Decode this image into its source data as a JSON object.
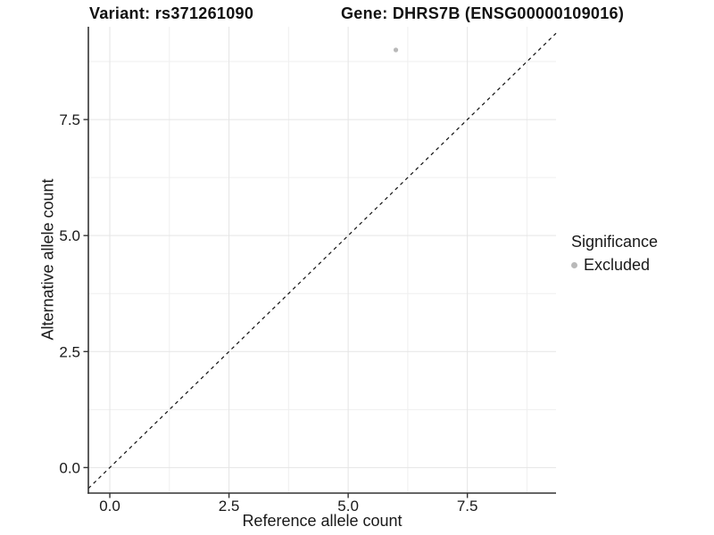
{
  "header": {
    "variant_title": "Variant: rs371261090",
    "gene_title": "Gene: DHRS7B (ENSG00000109016)"
  },
  "chart_data": {
    "type": "scatter",
    "xlabel": "Reference allele count",
    "ylabel": "Alternative allele count",
    "xlim": [
      -0.45,
      9.36
    ],
    "ylim": [
      -0.55,
      9.5
    ],
    "x_ticks": {
      "values": [
        0,
        2.5,
        5,
        7.5
      ],
      "labels": [
        "0.0",
        "2.5",
        "5.0",
        "7.5"
      ]
    },
    "y_ticks": {
      "values": [
        0,
        2.5,
        5,
        7.5
      ],
      "labels": [
        "0.0",
        "2.5",
        "5.0",
        "7.5"
      ]
    },
    "x_minor_breaks": [
      1.25,
      3.75,
      6.25,
      8.75
    ],
    "y_minor_breaks": [
      1.25,
      3.75,
      6.25,
      8.75
    ],
    "grid": "on",
    "reference_line": {
      "type": "identity",
      "slope": 1,
      "intercept": 0,
      "style": "dashed"
    },
    "series": [
      {
        "name": "Excluded",
        "points": [
          {
            "x": 6,
            "y": 9
          }
        ]
      }
    ],
    "legend": {
      "title": "Significance",
      "position": "right",
      "entries": [
        {
          "label": "Excluded",
          "color": "#b9b9b9"
        }
      ]
    }
  },
  "colors": {
    "background": "#ffffff",
    "text": "#191919",
    "axis_line": "#333333",
    "grid_major": "#e5e5e5",
    "grid_minor": "#efefef",
    "excluded_point": "#b9b9b9",
    "reference_line": "#111111"
  }
}
